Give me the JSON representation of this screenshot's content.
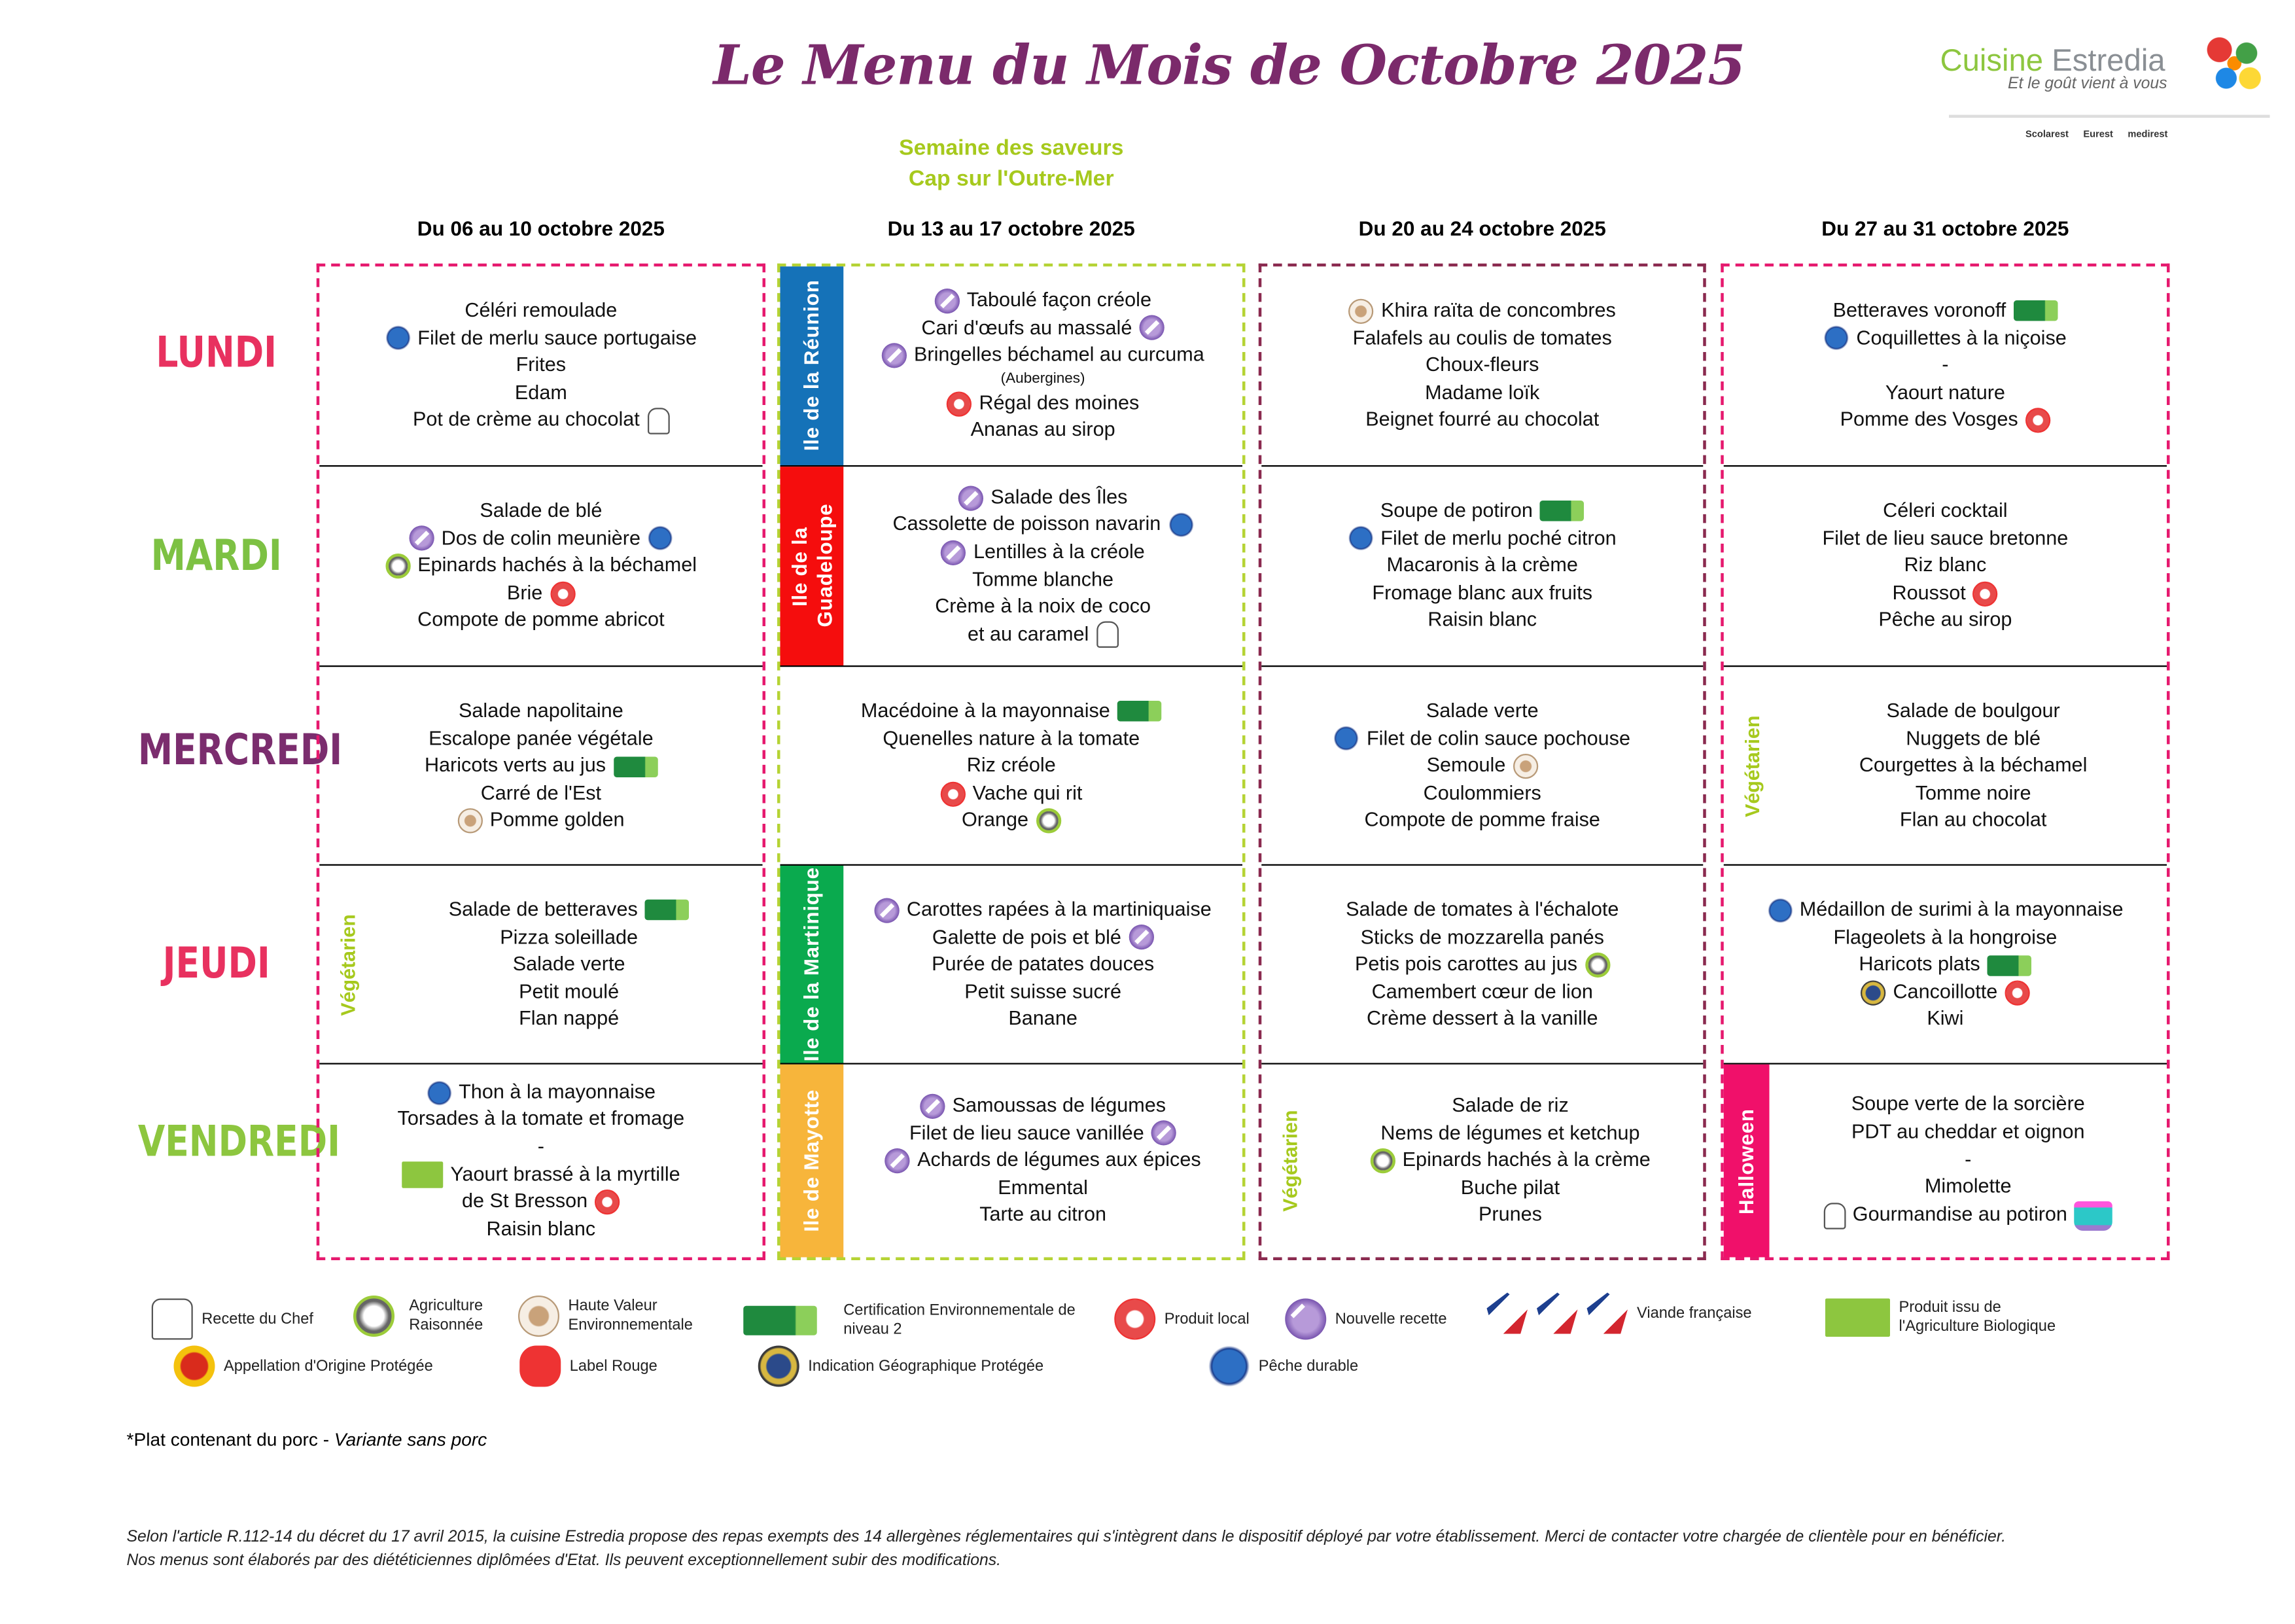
{
  "header": {
    "title": "Le Menu du Mois de Octobre 2025",
    "subtitle_1": "Semaine des saveurs",
    "subtitle_2": "Cap sur l'Outre-Mer",
    "logo": {
      "name_1": "Cuisine",
      "name_2": "Estredia",
      "tagline": "Et le goût vient à vous",
      "brands": [
        "Scolarest",
        "Eurest",
        "medirest"
      ]
    }
  },
  "days": [
    "LUNDI",
    "MARDI",
    "MERCREDI",
    "JEUDI",
    "VENDREDI"
  ],
  "day_colors": [
    "#e8315f",
    "#7dc143",
    "#7b2d6e",
    "#e8315f",
    "#8dc63f"
  ],
  "vegetarian_label": "Végétarien",
  "weeks": [
    {
      "header": "Du 06 au 10 octobre 2025",
      "border_color": "#e6196e",
      "cells": [
        {
          "items": [
            {
              "t": "Céléri remoulade"
            },
            {
              "t": "Filet de merlu sauce portugaise",
              "pre": "peche-durable"
            },
            {
              "t": "Frites"
            },
            {
              "t": "Edam"
            },
            {
              "t": "Pot de crème au chocolat",
              "post": "chef-hat"
            }
          ]
        },
        {
          "items": [
            {
              "t": "Salade de blé"
            },
            {
              "t": "Dos de colin meunière",
              "pre": "nouvelle-recette",
              "post": "peche-durable"
            },
            {
              "t": "Epinards hachés à la béchamel",
              "pre": "agriculture-raisonnee"
            },
            {
              "t": "Brie",
              "post": "produit-local"
            },
            {
              "t": "Compote de pomme abricot"
            }
          ]
        },
        {
          "items": [
            {
              "t": "Salade napolitaine"
            },
            {
              "t": "Escalope panée végétale"
            },
            {
              "t": "Haricots verts au jus",
              "post": "cert-niveau2"
            },
            {
              "t": "Carré de l'Est"
            },
            {
              "t": "Pomme golden",
              "pre": "hve"
            }
          ]
        },
        {
          "vegetarian": true,
          "items": [
            {
              "t": "Salade de betteraves",
              "post": "cert-niveau2"
            },
            {
              "t": "Pizza soleillade"
            },
            {
              "t": "Salade verte"
            },
            {
              "t": "Petit moulé"
            },
            {
              "t": "Flan nappé"
            }
          ]
        },
        {
          "items": [
            {
              "t": "Thon à la mayonnaise",
              "pre": "peche-durable"
            },
            {
              "t": "Torsades à la tomate et fromage"
            },
            {
              "t": "-"
            },
            {
              "t": "Yaourt brassé à la myrtille",
              "pre": "bio"
            },
            {
              "t": "de St Bresson",
              "post": "produit-local"
            },
            {
              "t": "Raisin blanc"
            }
          ]
        }
      ]
    },
    {
      "header": "Du 13 au 17 octobre 2025",
      "border_color": "#b5d334",
      "cells": [
        {
          "band": "Ile de la Réunion",
          "band_color": "#1572b8",
          "items": [
            {
              "t": "Taboulé façon créole",
              "pre": "nouvelle-recette"
            },
            {
              "t": "Cari d'œufs au massalé",
              "post": "nouvelle-recette"
            },
            {
              "t": "Bringelles béchamel au curcuma",
              "pre": "nouvelle-recette"
            },
            {
              "t": "(Aubergines)",
              "small": true
            },
            {
              "t": "Régal des moines",
              "pre": "produit-local"
            },
            {
              "t": "Ananas au sirop"
            }
          ]
        },
        {
          "band": "Ile de la Guadeloupe",
          "band_color": "#f50d0d",
          "items": [
            {
              "t": "Salade des Îles",
              "pre": "nouvelle-recette"
            },
            {
              "t": "Cassolette de poisson navarin",
              "post": "peche-durable"
            },
            {
              "t": "Lentilles à la créole",
              "pre": "nouvelle-recette"
            },
            {
              "t": "Tomme blanche"
            },
            {
              "t": "Crème à la noix de coco"
            },
            {
              "t": "et au caramel",
              "post": "chef-hat"
            }
          ]
        },
        {
          "items": [
            {
              "t": "Macédoine à la mayonnaise",
              "post": "cert-niveau2"
            },
            {
              "t": "Quenelles nature à la tomate"
            },
            {
              "t": "Riz créole"
            },
            {
              "t": "Vache qui rit",
              "pre": "produit-local"
            },
            {
              "t": "Orange",
              "post": "agriculture-raisonnee"
            }
          ]
        },
        {
          "band": "Ile de la Martinique",
          "band_color": "#0aaa4e",
          "items": [
            {
              "t": "Carottes rapées à la martiniquaise",
              "pre": "nouvelle-recette"
            },
            {
              "t": "Galette de pois et blé",
              "post": "nouvelle-recette"
            },
            {
              "t": "Purée de patates douces"
            },
            {
              "t": "Petit suisse sucré"
            },
            {
              "t": "Banane"
            }
          ]
        },
        {
          "band": "Ile de Mayotte",
          "band_color": "#f7b53b",
          "items": [
            {
              "t": "Samoussas de légumes",
              "pre": "nouvelle-recette"
            },
            {
              "t": "Filet de lieu sauce vanillée",
              "post": "nouvelle-recette"
            },
            {
              "t": "Achards de légumes aux épices",
              "pre": "nouvelle-recette"
            },
            {
              "t": "Emmental"
            },
            {
              "t": "Tarte au citron"
            }
          ]
        }
      ]
    },
    {
      "header": "Du 20 au 24 octobre 2025",
      "border_color": "#8a2a4f",
      "cells": [
        {
          "items": [
            {
              "t": "Khira raïta de concombres",
              "pre": "hve"
            },
            {
              "t": "Falafels au coulis de tomates"
            },
            {
              "t": "Choux-fleurs"
            },
            {
              "t": "Madame loïk"
            },
            {
              "t": "Beignet fourré au chocolat"
            }
          ]
        },
        {
          "items": [
            {
              "t": "Soupe de potiron",
              "post": "cert-niveau2"
            },
            {
              "t": "Filet de merlu poché citron",
              "pre": "peche-durable"
            },
            {
              "t": "Macaronis à la crème"
            },
            {
              "t": "Fromage blanc aux fruits"
            },
            {
              "t": "Raisin blanc"
            }
          ]
        },
        {
          "items": [
            {
              "t": "Salade verte"
            },
            {
              "t": "Filet de colin sauce pochouse",
              "pre": "peche-durable"
            },
            {
              "t": "Semoule",
              "post": "hve"
            },
            {
              "t": "Coulommiers"
            },
            {
              "t": "Compote de pomme fraise"
            }
          ]
        },
        {
          "items": [
            {
              "t": "Salade de tomates à l'échalote"
            },
            {
              "t": "Sticks de mozzarella panés"
            },
            {
              "t": "Petis pois carottes au jus",
              "post": "agriculture-raisonnee"
            },
            {
              "t": "Camembert cœur de lion"
            },
            {
              "t": "Crème dessert à la vanille"
            }
          ]
        },
        {
          "vegetarian": true,
          "items": [
            {
              "t": "Salade de riz"
            },
            {
              "t": "Nems de légumes et ketchup"
            },
            {
              "t": "Epinards hachés à la crème",
              "pre": "agriculture-raisonnee"
            },
            {
              "t": "Buche pilat"
            },
            {
              "t": "Prunes"
            }
          ]
        }
      ]
    },
    {
      "header": "Du 27 au 31 octobre 2025",
      "border_color": "#e6196e",
      "cells": [
        {
          "items": [
            {
              "t": "Betteraves voronoff",
              "post": "cert-niveau2"
            },
            {
              "t": "Coquillettes à la niçoise",
              "pre": "peche-durable"
            },
            {
              "t": "-"
            },
            {
              "t": "Yaourt nature"
            },
            {
              "t": "Pomme des Vosges",
              "post": "produit-local"
            }
          ]
        },
        {
          "items": [
            {
              "t": "Céleri cocktail"
            },
            {
              "t": "Filet de lieu sauce bretonne"
            },
            {
              "t": "Riz blanc"
            },
            {
              "t": "Roussot",
              "post": "produit-local"
            },
            {
              "t": "Pêche au sirop"
            }
          ]
        },
        {
          "vegetarian": true,
          "items": [
            {
              "t": "Salade de boulgour"
            },
            {
              "t": "Nuggets de blé"
            },
            {
              "t": "Courgettes à la béchamel"
            },
            {
              "t": "Tomme noire"
            },
            {
              "t": "Flan au chocolat"
            }
          ]
        },
        {
          "items": [
            {
              "t": "Médaillon de surimi à la mayonnaise",
              "pre": "peche-durable"
            },
            {
              "t": "Flageolets à la hongroise"
            },
            {
              "t": "Haricots plats",
              "post": "cert-niveau2"
            },
            {
              "t": "Cancoillotte",
              "pre": "igp",
              "post": "produit-local"
            },
            {
              "t": "Kiwi"
            }
          ]
        },
        {
          "band": "Halloween",
          "band_color": "#f0106a",
          "narrow_band": true,
          "items": [
            {
              "t": "Soupe verte de la sorcière"
            },
            {
              "t": "PDT au cheddar et oignon"
            },
            {
              "t": "-"
            },
            {
              "t": "Mimolette"
            },
            {
              "t": "Gourmandise au potiron",
              "pre": "chef-hat",
              "post": "cake"
            }
          ]
        }
      ]
    }
  ],
  "legend": [
    {
      "icon": "chef-hat",
      "label": "Recette du Chef"
    },
    {
      "icon": "agriculture-raisonnee",
      "label": "Agriculture Raisonnée"
    },
    {
      "icon": "hve",
      "label": "Haute Valeur Environnementale"
    },
    {
      "icon": "cert-niveau2",
      "label": "Certification Environnementale de niveau 2"
    },
    {
      "icon": "produit-local",
      "label": "Produit local"
    },
    {
      "icon": "nouvelle-recette",
      "label": "Nouvelle recette"
    },
    {
      "icon": "viande-francaise",
      "label": "Viande française"
    },
    {
      "icon": "bio",
      "label": "Produit issu de l'Agriculture Biologique"
    },
    {
      "icon": "aop",
      "label": "Appellation d'Origine Protégée"
    },
    {
      "icon": "label-rouge",
      "label": "Label Rouge"
    },
    {
      "icon": "igp",
      "label": "Indication Géographique Protégée"
    },
    {
      "icon": "peche-durable",
      "label": "Pêche durable"
    }
  ],
  "footnote": {
    "main": "*Plat contenant du porc  - ",
    "italic": "Variante sans porc"
  },
  "legal": {
    "line_1": "Selon l'article R.112-14 du décret du 17 avril 2015, la cuisine Estredia propose des repas exempts des 14 allergènes réglementaires qui s'intègrent dans le dispositif déployé par votre établissement. Merci de contacter votre chargée de clientèle pour en bénéficier.",
    "line_2": "Nos menus sont élaborés par des diététiciennes diplômées d'Etat. Ils peuvent exceptionnellement subir des modifications."
  }
}
